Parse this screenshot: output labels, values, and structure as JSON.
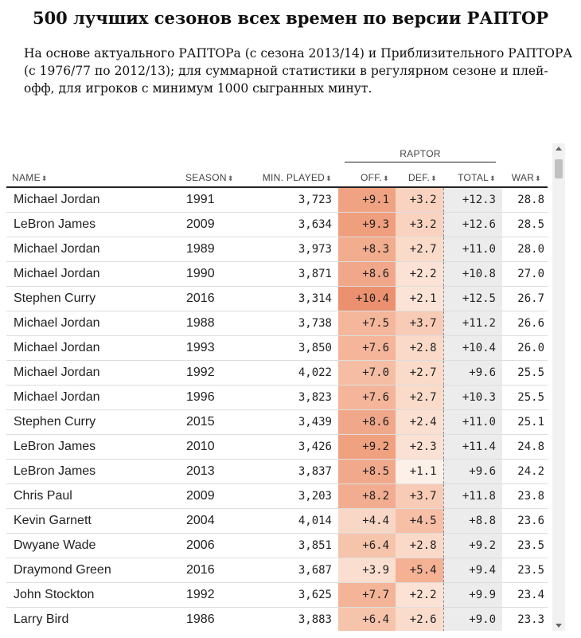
{
  "header": {
    "title": "500 лучших сезонов всех времен по версии РАПТОР",
    "subtitle": "На основе актуального РАПТОРа (с сезона 2013/14) и Приблизительного РАПТОРА (с 1976/77 по 2012/13); для суммарной статистики в регулярном сезоне и плей-офф, для игроков с минимум 1000 сыгранных минут."
  },
  "table": {
    "group_label": "RAPTOR",
    "columns": {
      "name": "NAME",
      "season": "SEASON",
      "min": "MIN. PLAYED",
      "off": "OFF.",
      "def": "DEF.",
      "total": "TOTAL",
      "war": "WAR"
    },
    "sort_glyph": "⬍",
    "rows": [
      {
        "name": "Michael Jordan",
        "season": "1991",
        "min": "3,723",
        "off": "+9.1",
        "def": "+3.2",
        "total": "+12.3",
        "war": "28.8",
        "off_color": "#f0a383",
        "def_color": "#f9d3c0"
      },
      {
        "name": "LeBron James",
        "season": "2009",
        "min": "3,634",
        "off": "+9.3",
        "def": "+3.2",
        "total": "+12.6",
        "war": "28.5",
        "off_color": "#ef9f7e",
        "def_color": "#f9d3c0"
      },
      {
        "name": "Michael Jordan",
        "season": "1989",
        "min": "3,973",
        "off": "+8.3",
        "def": "+2.7",
        "total": "+11.0",
        "war": "28.0",
        "off_color": "#f2ac8e",
        "def_color": "#fadbca"
      },
      {
        "name": "Michael Jordan",
        "season": "1990",
        "min": "3,871",
        "off": "+8.6",
        "def": "+2.2",
        "total": "+10.8",
        "war": "27.0",
        "off_color": "#f1a88a",
        "def_color": "#fbe2d5"
      },
      {
        "name": "Stephen Curry",
        "season": "2016",
        "min": "3,314",
        "off": "+10.4",
        "def": "+2.1",
        "total": "+12.5",
        "war": "26.7",
        "off_color": "#ec9170",
        "def_color": "#fbe4d7"
      },
      {
        "name": "Michael Jordan",
        "season": "1988",
        "min": "3,738",
        "off": "+7.5",
        "def": "+3.7",
        "total": "+11.2",
        "war": "26.6",
        "off_color": "#f4b79c",
        "def_color": "#f8cbb6"
      },
      {
        "name": "Michael Jordan",
        "season": "1993",
        "min": "3,850",
        "off": "+7.6",
        "def": "+2.8",
        "total": "+10.4",
        "war": "26.0",
        "off_color": "#f4b59a",
        "def_color": "#fad9c8"
      },
      {
        "name": "Michael Jordan",
        "season": "1992",
        "min": "4,022",
        "off": "+7.0",
        "def": "+2.7",
        "total": "+9.6",
        "war": "25.5",
        "off_color": "#f5bda3",
        "def_color": "#fadbca"
      },
      {
        "name": "Michael Jordan",
        "season": "1996",
        "min": "3,823",
        "off": "+7.6",
        "def": "+2.7",
        "total": "+10.3",
        "war": "25.5",
        "off_color": "#f4b59a",
        "def_color": "#fadbca"
      },
      {
        "name": "Stephen Curry",
        "season": "2015",
        "min": "3,439",
        "off": "+8.6",
        "def": "+2.4",
        "total": "+11.0",
        "war": "25.1",
        "off_color": "#f1a88a",
        "def_color": "#fbdfd1"
      },
      {
        "name": "LeBron James",
        "season": "2010",
        "min": "3,426",
        "off": "+9.2",
        "def": "+2.3",
        "total": "+11.4",
        "war": "24.8",
        "off_color": "#efa180",
        "def_color": "#fbe1d3"
      },
      {
        "name": "LeBron James",
        "season": "2013",
        "min": "3,837",
        "off": "+8.5",
        "def": "+1.1",
        "total": "+9.6",
        "war": "24.2",
        "off_color": "#f1a98c",
        "def_color": "#fdf0e9"
      },
      {
        "name": "Chris Paul",
        "season": "2009",
        "min": "3,203",
        "off": "+8.2",
        "def": "+3.7",
        "total": "+11.8",
        "war": "23.8",
        "off_color": "#f2ad90",
        "def_color": "#f8cbb6"
      },
      {
        "name": "Kevin Garnett",
        "season": "2004",
        "min": "4,014",
        "off": "+4.4",
        "def": "+4.5",
        "total": "+8.8",
        "war": "23.6",
        "off_color": "#f9d7c6",
        "def_color": "#f6bfa6"
      },
      {
        "name": "Dwyane Wade",
        "season": "2006",
        "min": "3,851",
        "off": "+6.4",
        "def": "+2.8",
        "total": "+9.2",
        "war": "23.5",
        "off_color": "#f6c3ab",
        "def_color": "#fad9c8"
      },
      {
        "name": "Draymond Green",
        "season": "2016",
        "min": "3,687",
        "off": "+3.9",
        "def": "+5.4",
        "total": "+9.4",
        "war": "23.5",
        "off_color": "#fadecf",
        "def_color": "#f4b194"
      },
      {
        "name": "John Stockton",
        "season": "1992",
        "min": "3,625",
        "off": "+7.7",
        "def": "+2.2",
        "total": "+9.9",
        "war": "23.4",
        "off_color": "#f3b498",
        "def_color": "#fbe2d5"
      },
      {
        "name": "Larry Bird",
        "season": "1986",
        "min": "3,883",
        "off": "+6.4",
        "def": "+2.6",
        "total": "+9.0",
        "war": "23.3",
        "off_color": "#f6c3ab",
        "def_color": "#fadccc"
      }
    ]
  }
}
